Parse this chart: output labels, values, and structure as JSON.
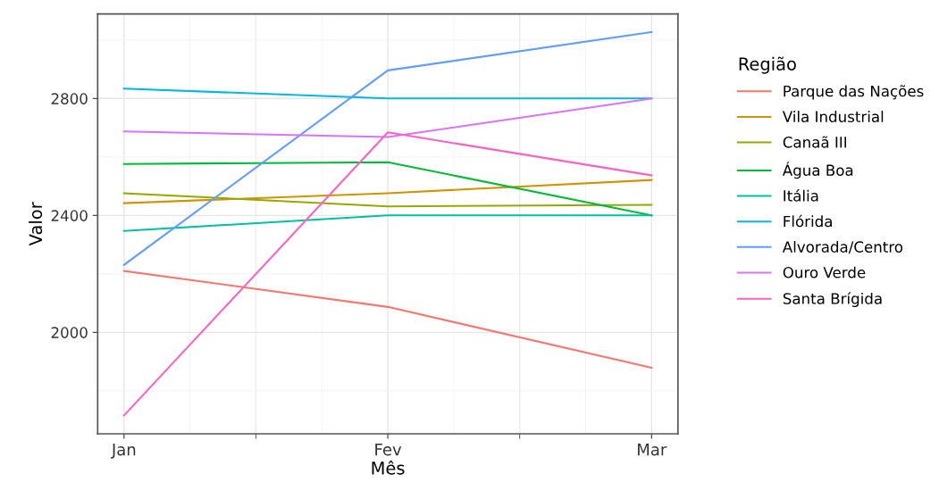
{
  "chart_data": {
    "type": "line",
    "xlabel": "Mês",
    "ylabel": "Valor",
    "legend_title": "Região",
    "categories": [
      "Jan",
      "Fev",
      "Mar"
    ],
    "ylim": [
      1653,
      3089
    ],
    "yticks": [
      {
        "value": 1800,
        "label": null
      },
      2000,
      {
        "value": 2200,
        "label": null
      },
      2400,
      {
        "value": 2600,
        "label": null
      },
      2800,
      {
        "value": 3000,
        "label": null
      }
    ],
    "grid": true,
    "legend": "right",
    "marker": "none",
    "line_style": "solid",
    "series": [
      {
        "name": "Parque das Nações",
        "color": "#f8766d",
        "values": [
          2210,
          2087,
          1879
        ]
      },
      {
        "name": "Vila Industrial",
        "color": "#d39200",
        "values": [
          2442,
          2476,
          2521
        ]
      },
      {
        "name": "Canaã III",
        "color": "#93aa00",
        "values": [
          2476,
          2431,
          2436
        ]
      },
      {
        "name": "Água Boa",
        "color": "#00ba38",
        "values": [
          2576,
          2582,
          2400
        ]
      },
      {
        "name": "Itália",
        "color": "#00c19f",
        "values": [
          2347,
          2400,
          2400
        ]
      },
      {
        "name": "Flórida",
        "color": "#00b9e3",
        "values": [
          2834,
          2800,
          2800
        ]
      },
      {
        "name": "Alvorada/Centro",
        "color": "#619cff",
        "values": [
          2231,
          2896,
          3027
        ]
      },
      {
        "name": "Ouro Verde",
        "color": "#db72fb",
        "values": [
          2687,
          2668,
          2800
        ]
      },
      {
        "name": "Santa Brígida",
        "color": "#ff61c3",
        "values": [
          1716,
          2684,
          2537
        ]
      }
    ]
  }
}
